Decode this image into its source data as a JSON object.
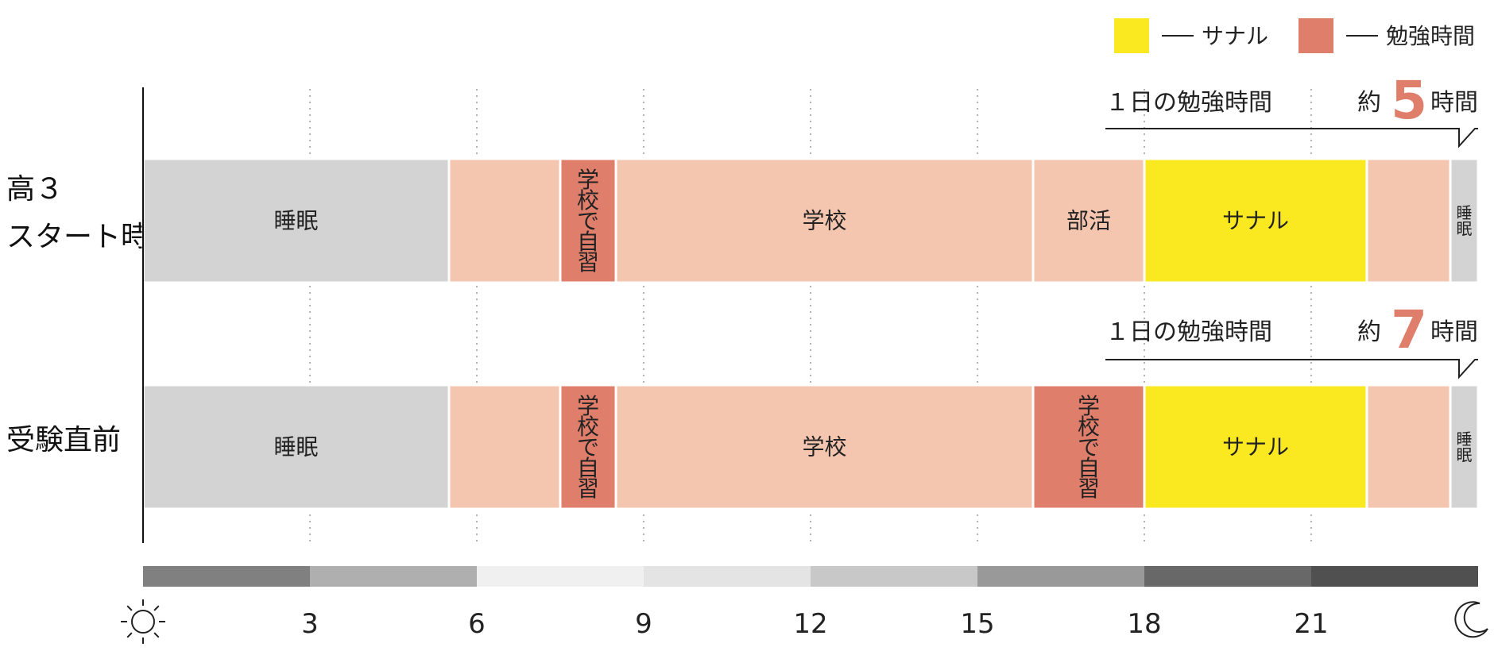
{
  "legend": [
    {
      "label": "サナル",
      "color": "#FAE820"
    },
    {
      "label": "勉強時間",
      "color": "#E07E6C"
    }
  ],
  "colors": {
    "sleep": "#D3D3D3",
    "life": "#F4C5AF",
    "study": "#E07E6C",
    "sanaru": "#FAE820"
  },
  "chart_data": {
    "type": "bar",
    "orientation": "horizontal-timeline",
    "x": {
      "min": 0,
      "max": 24,
      "ticks": [
        3,
        6,
        9,
        12,
        15,
        18,
        21
      ],
      "unit": "hour"
    },
    "rows": [
      {
        "label_lines": [
          "高３",
          "スタート時"
        ],
        "daily_study": {
          "prefix": "１日の勉強時間",
          "approx": "約",
          "hours": "5",
          "unit": "時間"
        },
        "segments": [
          {
            "start": 0,
            "end": 5.5,
            "label": "睡眠",
            "kind": "sleep"
          },
          {
            "start": 5.5,
            "end": 7.5,
            "label": "",
            "kind": "life"
          },
          {
            "start": 7.5,
            "end": 8.5,
            "label": "学校で自習",
            "kind": "study",
            "vertical": true
          },
          {
            "start": 8.5,
            "end": 16,
            "label": "学校",
            "kind": "life"
          },
          {
            "start": 16,
            "end": 18,
            "label": "部活",
            "kind": "life"
          },
          {
            "start": 18,
            "end": 22,
            "label": "サナル",
            "kind": "sanaru"
          },
          {
            "start": 22,
            "end": 23.5,
            "label": "",
            "kind": "life"
          },
          {
            "start": 23.5,
            "end": 24,
            "label": "睡眠",
            "kind": "sleep",
            "vertical": true
          }
        ]
      },
      {
        "label_lines": [
          "受験直前"
        ],
        "daily_study": {
          "prefix": "１日の勉強時間",
          "approx": "約",
          "hours": "7",
          "unit": "時間"
        },
        "segments": [
          {
            "start": 0,
            "end": 5.5,
            "label": "睡眠",
            "kind": "sleep"
          },
          {
            "start": 5.5,
            "end": 7.5,
            "label": "",
            "kind": "life"
          },
          {
            "start": 7.5,
            "end": 8.5,
            "label": "学校で自習",
            "kind": "study",
            "vertical": true
          },
          {
            "start": 8.5,
            "end": 16,
            "label": "学校",
            "kind": "life"
          },
          {
            "start": 16,
            "end": 18,
            "label": "学校で自習",
            "kind": "study",
            "vertical": true
          },
          {
            "start": 18,
            "end": 22,
            "label": "サナル",
            "kind": "sanaru"
          },
          {
            "start": 22,
            "end": 23.5,
            "label": "",
            "kind": "life"
          },
          {
            "start": 23.5,
            "end": 24,
            "label": "睡眠",
            "kind": "sleep",
            "vertical": true
          }
        ]
      }
    ],
    "daylight_band": [
      {
        "start": 0,
        "end": 3,
        "color": "#808080"
      },
      {
        "start": 3,
        "end": 6,
        "color": "#AFAFAF"
      },
      {
        "start": 6,
        "end": 9,
        "color": "#F0F0F0"
      },
      {
        "start": 9,
        "end": 12,
        "color": "#E4E4E4"
      },
      {
        "start": 12,
        "end": 15,
        "color": "#C8C8C8"
      },
      {
        "start": 15,
        "end": 18,
        "color": "#999999"
      },
      {
        "start": 18,
        "end": 21,
        "color": "#686868"
      },
      {
        "start": 21,
        "end": 24,
        "color": "#505050"
      }
    ],
    "axis_icons": {
      "start": "sun-icon",
      "end": "moon-icon"
    },
    "grid": true
  }
}
